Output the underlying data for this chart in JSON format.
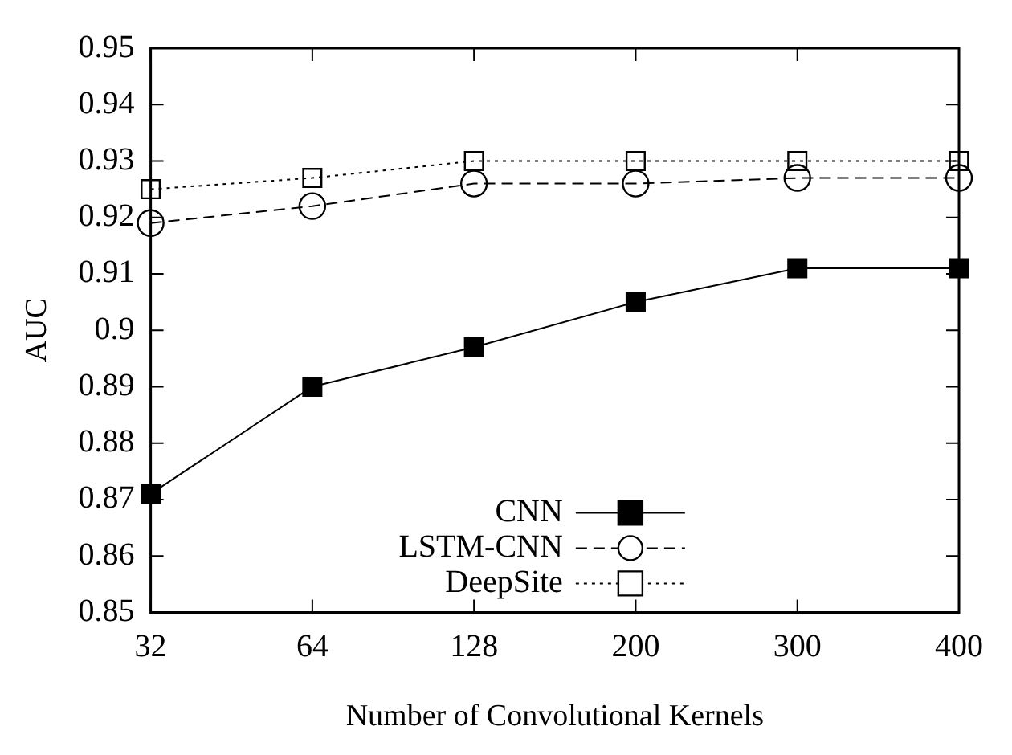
{
  "chart_data": {
    "type": "line",
    "xlabel": "Number of Convolutional Kernels",
    "ylabel": "AUC",
    "categories": [
      "32",
      "64",
      "128",
      "200",
      "300",
      "400"
    ],
    "series": [
      {
        "name": "CNN",
        "color": "#000000",
        "marker": "square",
        "line_style": "solid",
        "values": [
          0.871,
          0.89,
          0.897,
          0.905,
          0.911,
          0.911
        ]
      },
      {
        "name": "LSTM-CNN",
        "color": "#000000",
        "marker": "circle",
        "line_style": "dashed",
        "values": [
          0.919,
          0.922,
          0.926,
          0.926,
          0.927,
          0.927
        ]
      },
      {
        "name": "DeepSite",
        "color": "#000000",
        "marker": "square",
        "line_style": "dotted",
        "values": [
          0.925,
          0.927,
          0.93,
          0.93,
          0.93,
          0.93
        ]
      }
    ],
    "ylim": [
      0.85,
      0.95
    ],
    "yticks": [
      0.85,
      0.86,
      0.87,
      0.88,
      0.89,
      0.9,
      0.91,
      0.92,
      0.93,
      0.94,
      0.95
    ],
    "grid": false,
    "legend": "bottom"
  }
}
